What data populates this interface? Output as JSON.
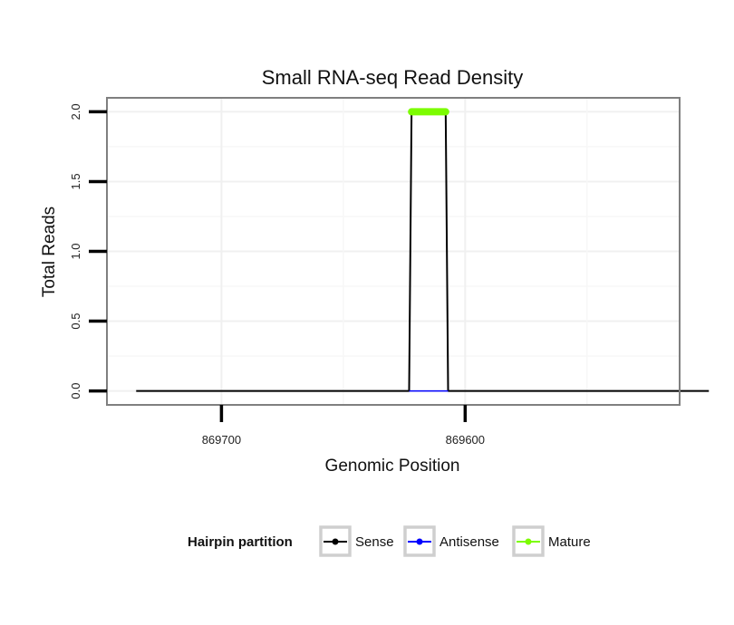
{
  "chart_data": {
    "type": "line",
    "title": "Small RNA-seq Read Density",
    "xlabel": "Genomic Position",
    "ylabel": "Total Reads",
    "x_reversed": true,
    "xlim": [
      869512,
      869747
    ],
    "ylim": [
      -0.1,
      2.1
    ],
    "x_ticks": [
      869700,
      869600
    ],
    "x_tick_labels": [
      "869700",
      "869600"
    ],
    "y_ticks": [
      0,
      0.5,
      1,
      1.5,
      2
    ],
    "y_tick_labels": [
      "0.0",
      "0.5",
      "1.0",
      "1.5",
      "2.0"
    ],
    "grid": true,
    "legend_position": "bottom",
    "legend_title": "Hairpin partition",
    "series": [
      {
        "name": "Sense",
        "color": "#000000",
        "x": [
          869735,
          869623,
          869622,
          869608,
          869607,
          869500
        ],
        "y": [
          0,
          0,
          2,
          2,
          0,
          0
        ]
      },
      {
        "name": "Antisense",
        "color": "#0000ff",
        "x": [
          869623,
          869607
        ],
        "y": [
          0,
          0
        ]
      },
      {
        "name": "Mature",
        "color": "#7cfc00",
        "x": [
          869622,
          869608
        ],
        "y": [
          2,
          2
        ]
      }
    ]
  }
}
